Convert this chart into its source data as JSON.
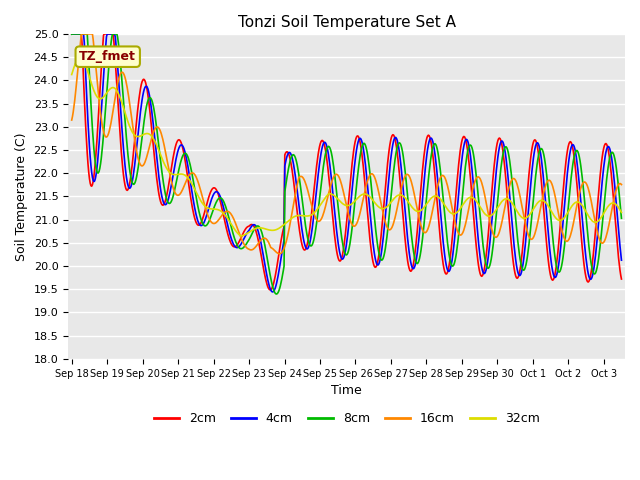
{
  "title": "Tonzi Soil Temperature Set A",
  "xlabel": "Time",
  "ylabel": "Soil Temperature (C)",
  "ylim": [
    18.0,
    25.0
  ],
  "yticks": [
    18.0,
    18.5,
    19.0,
    19.5,
    20.0,
    20.5,
    21.0,
    21.5,
    22.0,
    22.5,
    23.0,
    23.5,
    24.0,
    24.5,
    25.0
  ],
  "xtick_labels": [
    "Sep 18",
    "Sep 19",
    "Sep 20",
    "Sep 21",
    "Sep 22",
    "Sep 23",
    "Sep 24",
    "Sep 25",
    "Sep 26",
    "Sep 27",
    "Sep 28",
    "Sep 29",
    "Sep 30",
    "Oct 1",
    "Oct 2",
    "Oct 3"
  ],
  "bg_color": "#e8e8e8",
  "grid_color": "#ffffff",
  "annotation_text": "TZ_fmet",
  "annotation_bg": "#ffffcc",
  "annotation_border": "#aaaa00",
  "annotation_text_color": "#880000",
  "legend_labels": [
    "2cm",
    "4cm",
    "8cm",
    "16cm",
    "32cm"
  ],
  "line_colors": [
    "#ff0000",
    "#0000ff",
    "#00bb00",
    "#ff8800",
    "#dddd00"
  ],
  "n_days": 15.5,
  "n_points": 744
}
